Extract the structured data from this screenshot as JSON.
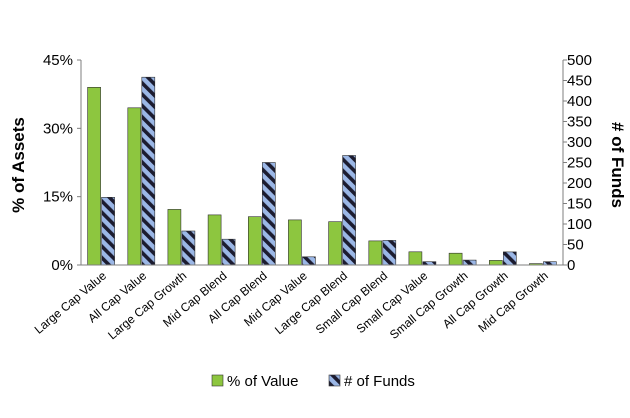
{
  "chart_data": {
    "type": "bar",
    "categories": [
      "Large Cap Value",
      "All Cap Value",
      "Large Cap Growth",
      "Mid Cap Blend",
      "All Cap Blend",
      "Mid Cap Value",
      "Large Cap Blend",
      "Small Cap Blend",
      "Small Cap Value",
      "Small Cap Growth",
      "All Cap Growth",
      "Mid Cap Growth"
    ],
    "series": [
      {
        "name": "% of Value",
        "axis": "left",
        "values": [
          39.0,
          34.5,
          12.2,
          11.0,
          10.6,
          9.9,
          9.5,
          5.3,
          2.9,
          2.6,
          1.0,
          0.3
        ],
        "color": "#8dc63f",
        "pattern": "solid"
      },
      {
        "name": "# of Funds",
        "axis": "right",
        "values": [
          165,
          458,
          83,
          63,
          250,
          20,
          267,
          60,
          8,
          12,
          32,
          8
        ],
        "color": "#9bb7e6",
        "pattern": "diagonal-stripes",
        "stripe_color": "#1c1c30"
      }
    ],
    "y_left": {
      "label": "% of Assets",
      "ylim": [
        0,
        45
      ],
      "ticks": [
        "0%",
        "15%",
        "30%",
        "45%"
      ]
    },
    "y_right": {
      "label": "# of Funds",
      "ylim": [
        0,
        500
      ],
      "ticks": [
        "0",
        "50",
        "100",
        "150",
        "200",
        "250",
        "300",
        "350",
        "400",
        "450",
        "500"
      ]
    },
    "grid": false,
    "legend": {
      "position": "bottom",
      "items": [
        "% of Value",
        "# of Funds"
      ]
    }
  }
}
